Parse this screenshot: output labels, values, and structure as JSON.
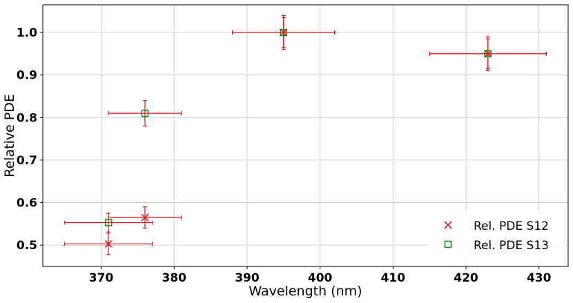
{
  "chart_data": {
    "type": "scatter",
    "xlabel": "Wavelength (nm)",
    "ylabel": "Relative PDE",
    "xlim": [
      362,
      434
    ],
    "ylim": [
      0.45,
      1.065
    ],
    "x_ticks": [
      370,
      380,
      390,
      400,
      410,
      420,
      430
    ],
    "y_ticks": [
      0.5,
      0.6,
      0.7,
      0.8,
      0.9,
      1.0
    ],
    "x_tick_labels": [
      "370",
      "380",
      "390",
      "400",
      "410",
      "420",
      "430"
    ],
    "y_tick_labels": [
      "0.5",
      "0.6",
      "0.7",
      "0.8",
      "0.9",
      "1.0"
    ],
    "grid": true,
    "legend_position": "bottom-right",
    "series": [
      {
        "name": "Rel. PDE S12",
        "marker": "x",
        "color": "#e8141a",
        "points": [
          {
            "x": 371,
            "y": 0.503,
            "xerr": 6,
            "yerr": 0.025
          },
          {
            "x": 376,
            "y": 0.565,
            "xerr": 5,
            "yerr": 0.025
          },
          {
            "x": 395,
            "y": 1.0,
            "xerr": 7,
            "yerr": 0.04
          },
          {
            "x": 423,
            "y": 0.95,
            "xerr": 8,
            "yerr": 0.04
          }
        ]
      },
      {
        "name": "Rel. PDE S13",
        "marker": "square",
        "color": "#138a13",
        "errorbar_color": "#e8141a",
        "points": [
          {
            "x": 371,
            "y": 0.553,
            "xerr": 6,
            "yerr": 0.022
          },
          {
            "x": 376,
            "y": 0.81,
            "xerr": 5,
            "yerr": 0.03
          },
          {
            "x": 395,
            "y": 1.0,
            "xerr": 7,
            "yerr": 0.035
          },
          {
            "x": 423,
            "y": 0.95,
            "xerr": 8,
            "yerr": 0.035
          }
        ]
      }
    ]
  }
}
